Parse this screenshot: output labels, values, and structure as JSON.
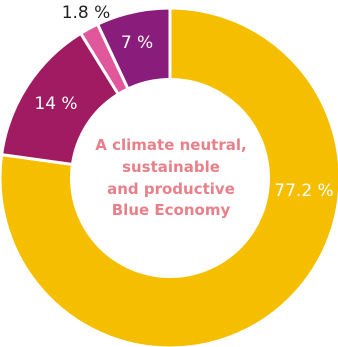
{
  "chart_data": {
    "type": "pie",
    "style": "donut",
    "center_label_lines": [
      "A climate neutral,",
      "sustainable",
      "and productive",
      "Blue Economy"
    ],
    "slices": [
      {
        "label": "77.2 %",
        "value": 77.2,
        "color": "#f5bf00",
        "label_color": "#ffffff"
      },
      {
        "label": "14 %",
        "value": 14.0,
        "color": "#a01b62",
        "label_color": "#ffffff"
      },
      {
        "label": "1.8 %",
        "value": 1.8,
        "color": "#e0579c",
        "label_color": "#222222"
      },
      {
        "label": "7 %",
        "value": 7.0,
        "color": "#8a1c7c",
        "label_color": "#ffffff"
      }
    ],
    "center_text_color": "#e8808a",
    "start_angle_deg": 0,
    "direction": "clockwise",
    "legend": "none"
  }
}
